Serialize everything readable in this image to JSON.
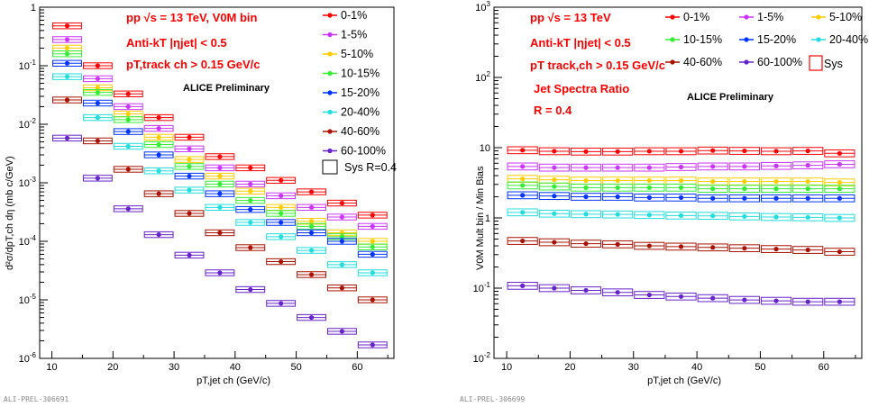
{
  "colors": {
    "0-1%": "#ff0000",
    "1-5%": "#cc33ff",
    "5-10%": "#ffcc00",
    "10-15%": "#33ee33",
    "15-20%": "#0033ff",
    "20-40%": "#22dddd",
    "40-60%": "#aa1100",
    "60-100%": "#6622cc"
  },
  "left": {
    "annot": {
      "line1": "pp  √s = 13 TeV, V0M bin",
      "line2": "Anti-kT  |ηjet| < 0.5",
      "line3": "pT,track ch > 0.15 GeV/c",
      "prelim": "ALICE Preliminary"
    },
    "sys_label": "Sys R=0.4",
    "tag": "ALI-PREL-306691"
  },
  "right": {
    "annot": {
      "line1": "pp  √s = 13 TeV",
      "line2": "Anti-kT  |ηjet| < 0.5",
      "line3": "pT track,ch > 0.15 GeV/c",
      "line4": "Jet Spectra Ratio",
      "line5": "R = 0.4",
      "prelim": "ALICE Preliminary"
    },
    "sys_label": "Sys",
    "tag": "ALI-PREL-306699"
  },
  "chart_data": [
    {
      "type": "scatter",
      "ylog": true,
      "xlabel": "pT,jet ch (GeV/c)",
      "ylabel": "d²σ/dpT,ch dη (mb c/GeV)",
      "xlim": [
        8,
        66
      ],
      "ylim": [
        1e-06,
        1
      ],
      "x_ticks": [
        10,
        20,
        30,
        40,
        50,
        60
      ],
      "y_ticks": [
        "10^-6",
        "10^-5",
        "10^-4",
        "10^-3",
        "10^-2",
        "10^-1",
        "1"
      ],
      "legend": [
        "0-1%",
        "1-5%",
        "5-10%",
        "10-15%",
        "15-20%",
        "20-40%",
        "40-60%",
        "60-100%",
        "Sys R=0.4"
      ],
      "bin_halfwidth": 2.5,
      "x": [
        12.5,
        17.5,
        22.5,
        27.5,
        32.5,
        37.5,
        42.5,
        47.5,
        52.5,
        57.5,
        62.5
      ],
      "series": [
        {
          "name": "0-1%",
          "values": [
            0.48,
            0.1,
            0.033,
            0.013,
            0.006,
            0.0028,
            0.0018,
            0.0011,
            0.0007,
            0.00045,
            0.00028
          ]
        },
        {
          "name": "1-5%",
          "values": [
            0.28,
            0.06,
            0.02,
            0.0085,
            0.0038,
            0.0018,
            0.00095,
            0.0006,
            0.00038,
            0.00026,
            0.00018
          ]
        },
        {
          "name": "5-10%",
          "values": [
            0.2,
            0.042,
            0.015,
            0.006,
            0.0025,
            0.0013,
            0.00072,
            0.00038,
            0.00022,
            0.00014,
            0.0001
          ]
        },
        {
          "name": "10-15%",
          "values": [
            0.16,
            0.035,
            0.012,
            0.0045,
            0.0019,
            0.00095,
            0.0005,
            0.0003,
            0.00018,
            0.00012,
            8e-05
          ]
        },
        {
          "name": "15-20%",
          "values": [
            0.11,
            0.023,
            0.0075,
            0.003,
            0.0013,
            0.00065,
            0.00035,
            0.00021,
            0.00014,
            0.0001,
            6e-05
          ]
        },
        {
          "name": "20-40%",
          "values": [
            0.065,
            0.013,
            0.0042,
            0.0016,
            0.00075,
            0.00038,
            0.00021,
            0.00012,
            7e-05,
            4e-05,
            2.9e-05
          ]
        },
        {
          "name": "40-60%",
          "values": [
            0.026,
            0.0052,
            0.0017,
            0.00065,
            0.0003,
            0.00014,
            7.8e-05,
            4.5e-05,
            2.7e-05,
            1.6e-05,
            1e-05
          ]
        },
        {
          "name": "60-100%",
          "values": [
            0.0058,
            0.0012,
            0.00036,
            0.00013,
            5.8e-05,
            2.9e-05,
            1.5e-05,
            8.7e-06,
            5e-06,
            2.9e-06,
            1.7e-06
          ]
        }
      ]
    },
    {
      "type": "scatter",
      "ylog": true,
      "xlabel": "pT,jet ch (GeV/c)",
      "ylabel": "V0M Mult bin / Min Bias",
      "xlim": [
        8,
        66
      ],
      "ylim": [
        0.01,
        1000
      ],
      "x_ticks": [
        10,
        20,
        30,
        40,
        50,
        60
      ],
      "y_ticks": [
        "10^-2",
        "10^-1",
        "1",
        "10",
        "10^2",
        "10^3"
      ],
      "legend": [
        "0-1%",
        "1-5%",
        "5-10%",
        "10-15%",
        "15-20%",
        "20-40%",
        "40-60%",
        "60-100%",
        "Sys"
      ],
      "bin_halfwidth": 2.5,
      "x": [
        12.5,
        17.5,
        22.5,
        27.5,
        32.5,
        37.5,
        42.5,
        47.5,
        52.5,
        57.5,
        62.5
      ],
      "series": [
        {
          "name": "0-1%",
          "values": [
            9.2,
            8.9,
            8.8,
            8.8,
            8.9,
            8.9,
            9.1,
            9.0,
            8.9,
            9.0,
            8.3
          ]
        },
        {
          "name": "1-5%",
          "values": [
            5.4,
            5.2,
            5.2,
            5.2,
            5.2,
            5.3,
            5.4,
            5.4,
            5.5,
            5.6,
            5.8
          ]
        },
        {
          "name": "5-10%",
          "values": [
            3.6,
            3.5,
            3.4,
            3.4,
            3.4,
            3.4,
            3.3,
            3.3,
            3.3,
            3.3,
            3.2
          ]
        },
        {
          "name": "10-15%",
          "values": [
            2.9,
            2.8,
            2.7,
            2.7,
            2.7,
            2.7,
            2.6,
            2.6,
            2.6,
            2.6,
            2.6
          ]
        },
        {
          "name": "15-20%",
          "values": [
            2.1,
            2.05,
            2.0,
            2.0,
            1.95,
            1.95,
            1.9,
            1.9,
            1.9,
            1.9,
            1.9
          ]
        },
        {
          "name": "20-40%",
          "values": [
            1.2,
            1.15,
            1.13,
            1.12,
            1.1,
            1.08,
            1.07,
            1.05,
            1.03,
            1.02,
            1.0
          ]
        },
        {
          "name": "40-60%",
          "values": [
            0.47,
            0.45,
            0.43,
            0.42,
            0.4,
            0.39,
            0.38,
            0.37,
            0.36,
            0.35,
            0.33
          ]
        },
        {
          "name": "60-100%",
          "values": [
            0.108,
            0.1,
            0.093,
            0.087,
            0.08,
            0.076,
            0.072,
            0.068,
            0.066,
            0.064,
            0.064
          ]
        }
      ]
    }
  ]
}
